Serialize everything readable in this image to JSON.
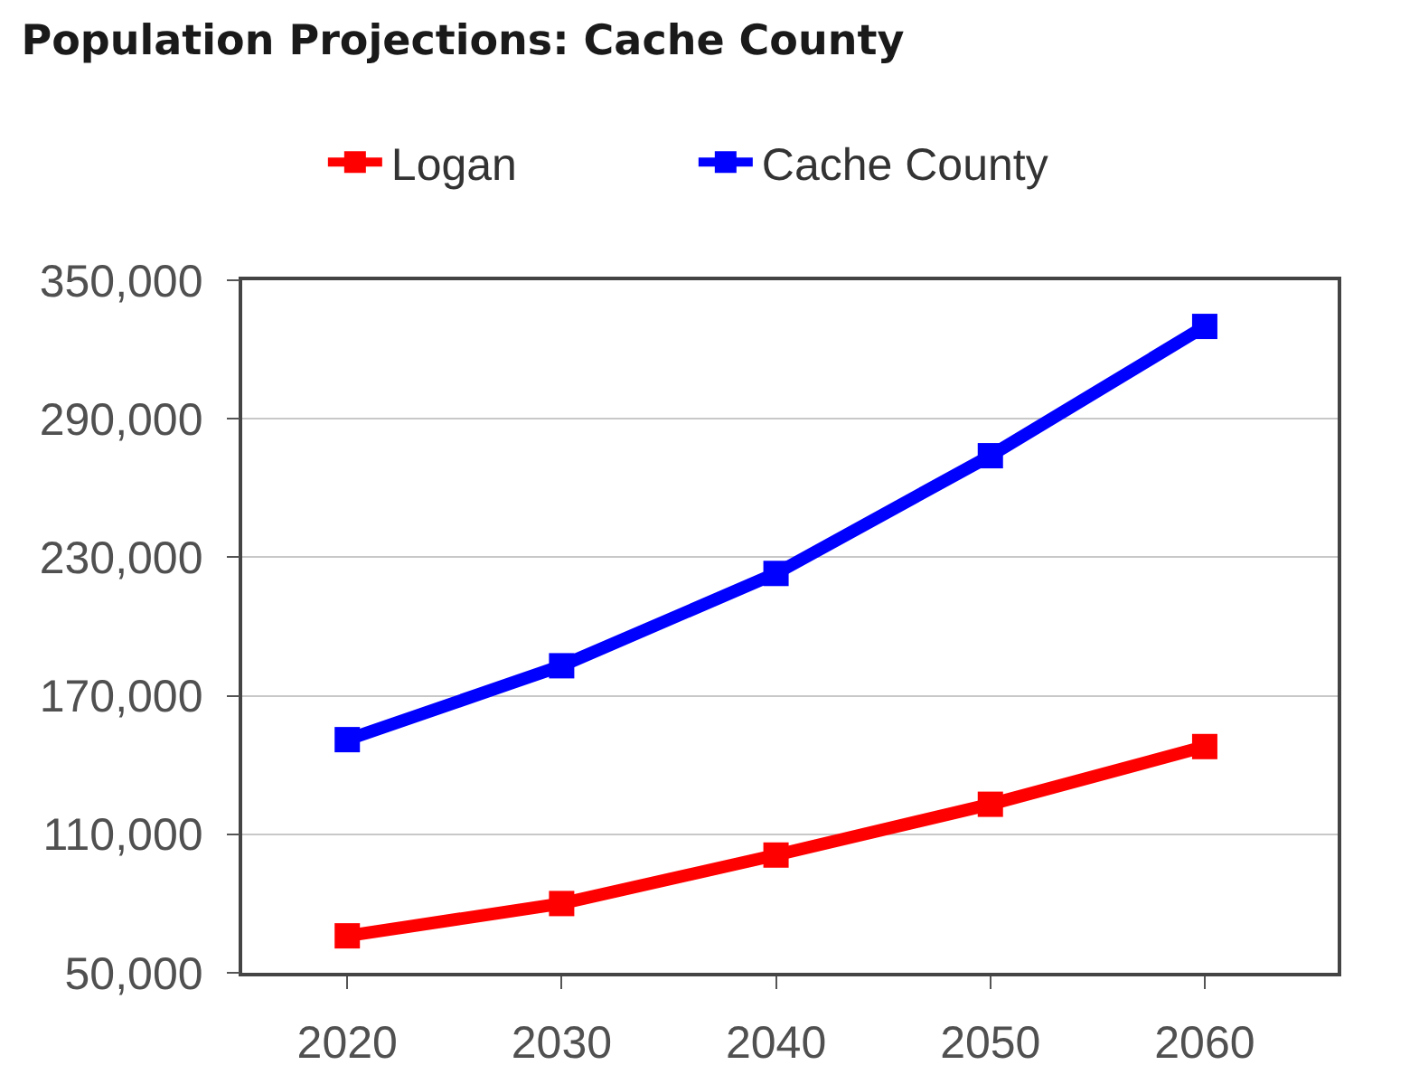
{
  "chart_data": {
    "type": "line",
    "title": "Population Projections: Cache County",
    "categories": [
      "2020",
      "2030",
      "2040",
      "2050",
      "2060"
    ],
    "series": [
      {
        "name": "Logan",
        "color": "#ff0000",
        "values": [
          66000,
          80000,
          101000,
          123000,
          148000
        ]
      },
      {
        "name": "Cache County",
        "color": "#0000ff",
        "values": [
          151000,
          183000,
          223000,
          274000,
          330000
        ]
      }
    ],
    "ylim": [
      50000,
      350000
    ],
    "yticks": [
      {
        "value": 50000,
        "label": "50,000"
      },
      {
        "value": 110000,
        "label": "110,000"
      },
      {
        "value": 170000,
        "label": "170,000"
      },
      {
        "value": 230000,
        "label": "230,000"
      },
      {
        "value": 290000,
        "label": "290,000"
      },
      {
        "value": 350000,
        "label": "350,000"
      }
    ],
    "grid": "y",
    "legend": "top",
    "marker": "square",
    "line_style": "solid"
  }
}
